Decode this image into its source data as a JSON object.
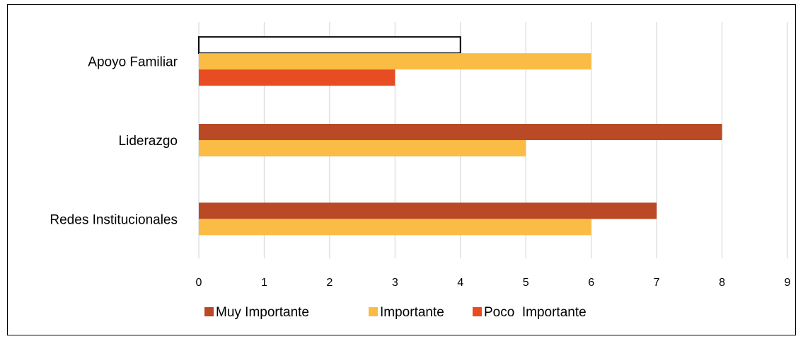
{
  "chart_data": {
    "type": "bar",
    "orientation": "horizontal",
    "categories": [
      "Apoyo Familiar",
      "Liderazgo",
      "Redes Institucionales"
    ],
    "series": [
      {
        "name": "Muy Importante",
        "color": "#b94a25",
        "values": [
          4,
          8,
          7
        ]
      },
      {
        "name": "Importante",
        "color": "#fbbc45",
        "values": [
          6,
          5,
          6
        ]
      },
      {
        "name": "Poco  Importante",
        "color": "#e84c22",
        "values": [
          3,
          null,
          null
        ]
      }
    ],
    "highlighted_bar": {
      "category": "Apoyo Familiar",
      "series": "Muy Importante",
      "style": "white fill with black outline"
    },
    "xlim": [
      0,
      9
    ],
    "xticks": [
      "0",
      "1",
      "2",
      "3",
      "4",
      "5",
      "6",
      "7",
      "8",
      "9"
    ],
    "grid": "vertical",
    "legend_position": "bottom",
    "title": "",
    "xlabel": "",
    "ylabel": ""
  }
}
